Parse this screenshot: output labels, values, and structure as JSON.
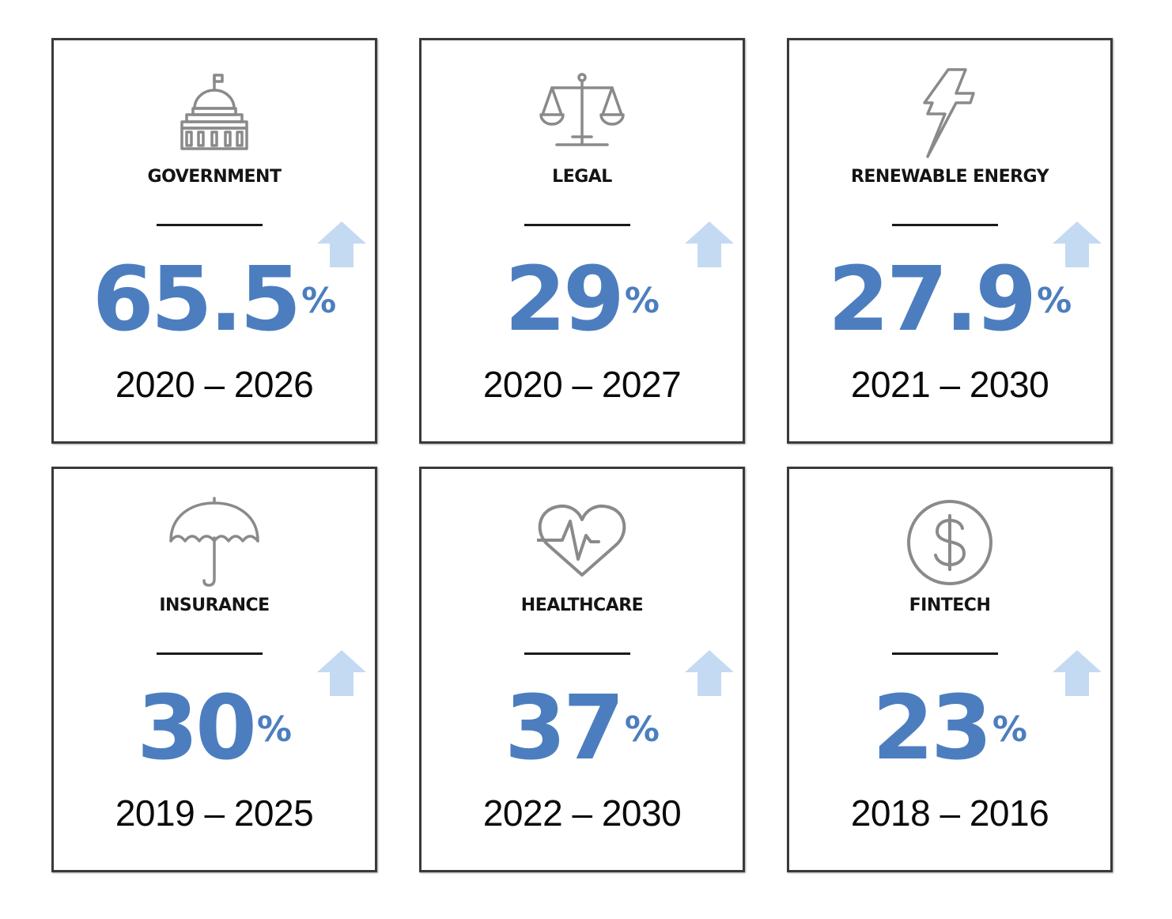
{
  "colors": {
    "accent": "#4c7ebf",
    "arrow": "#c4daf3",
    "icon_stroke": "#8a8a8a",
    "border": "#3a3a3a"
  },
  "cards": [
    {
      "label": "GOVERNMENT",
      "icon": "government-building-icon",
      "value": "65.5",
      "unit": "%",
      "period": "2020 – 2026"
    },
    {
      "label": "LEGAL",
      "icon": "scales-of-justice-icon",
      "value": "29",
      "unit": "%",
      "period": "2020 – 2027"
    },
    {
      "label": "RENEWABLE ENERGY",
      "icon": "lightning-bolt-icon",
      "value": "27.9",
      "unit": "%",
      "period": "2021 – 2030"
    },
    {
      "label": "INSURANCE",
      "icon": "umbrella-icon",
      "value": "30",
      "unit": "%",
      "period": "2019 – 2025"
    },
    {
      "label": "HEALTHCARE",
      "icon": "heart-pulse-icon",
      "value": "37",
      "unit": "%",
      "period": "2022 – 2030"
    },
    {
      "label": "FINTECH",
      "icon": "dollar-coin-icon",
      "value": "23",
      "unit": "%",
      "period": "2018 – 2016"
    }
  ]
}
